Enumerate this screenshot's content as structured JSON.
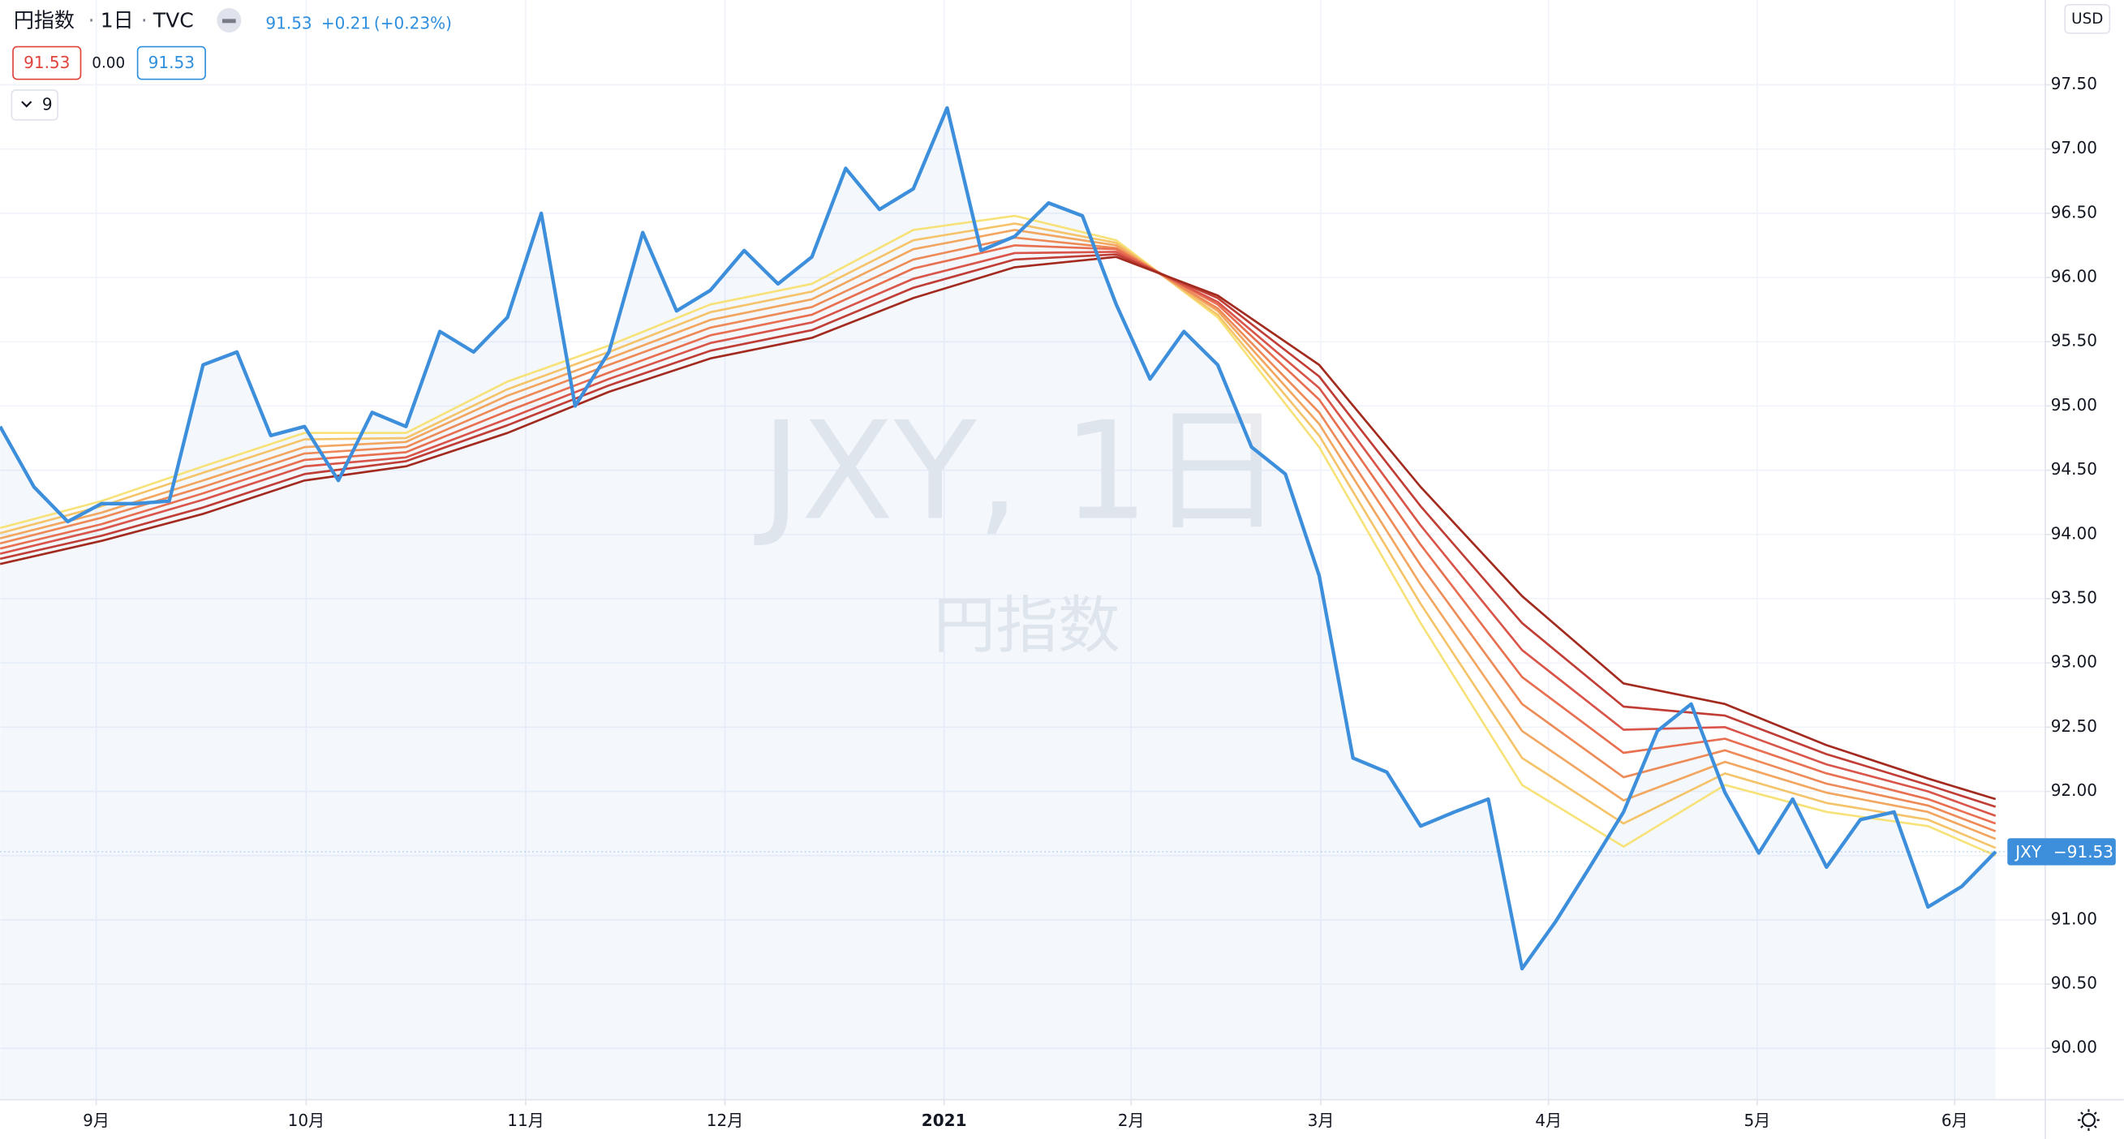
{
  "header": {
    "symbol_name": "円指数",
    "separator": "·",
    "interval": "1日",
    "source": "TVC",
    "last": "91.53",
    "change": "+0.21",
    "change_pct": "(+0.23%)",
    "box_low": "91.53",
    "box_mid": "0.00",
    "box_high": "91.53",
    "indicator_param": "9"
  },
  "watermark": {
    "main": "JXY, 1日",
    "sub": "円指数"
  },
  "currency": "USD",
  "price_label": {
    "symbol": "JXY",
    "separator": "−",
    "value": "91.53"
  },
  "chart_data": {
    "type": "line",
    "grid": true,
    "xlim": [
      0,
      60.47
    ],
    "ylim": [
      89.6,
      98.16
    ],
    "xticks": [
      {
        "value": 2.84,
        "label": "9月"
      },
      {
        "value": 9.05,
        "label": "10月"
      },
      {
        "value": 15.54,
        "label": "11月"
      },
      {
        "value": 21.43,
        "label": "12月"
      },
      {
        "value": 27.91,
        "label": "2021"
      },
      {
        "value": 33.44,
        "label": "2月"
      },
      {
        "value": 39.05,
        "label": "3月"
      },
      {
        "value": 45.78,
        "label": "4月"
      },
      {
        "value": 51.95,
        "label": "5月"
      },
      {
        "value": 57.79,
        "label": "6月"
      }
    ],
    "yticks": [
      {
        "value": 90,
        "label": "90.00"
      },
      {
        "value": 90.5,
        "label": "90.50"
      },
      {
        "value": 91,
        "label": "91.00"
      },
      {
        "value": 91.5,
        "label": "91.50"
      },
      {
        "value": 92,
        "label": "92.00"
      },
      {
        "value": 92.5,
        "label": "92.50"
      },
      {
        "value": 93,
        "label": "93.00"
      },
      {
        "value": 93.5,
        "label": "93.50"
      },
      {
        "value": 94,
        "label": "94.00"
      },
      {
        "value": 94.5,
        "label": "94.50"
      },
      {
        "value": 95,
        "label": "95.00"
      },
      {
        "value": 95.5,
        "label": "95.50"
      },
      {
        "value": 96,
        "label": "96.00"
      },
      {
        "value": 96.5,
        "label": "96.50"
      },
      {
        "value": 97,
        "label": "97.00"
      },
      {
        "value": 97.5,
        "label": "97.50"
      }
    ],
    "series": [
      {
        "color": "#3d8fdc",
        "area": true,
        "x": [
          0,
          1,
          2,
          3,
          4,
          5,
          6,
          7,
          8,
          9,
          10,
          11,
          12,
          13,
          14,
          15,
          16,
          17,
          18,
          19,
          20,
          21,
          22,
          23,
          24,
          25,
          26,
          27,
          28,
          29,
          30,
          31,
          32,
          33,
          34,
          35,
          36,
          37,
          38,
          39,
          40,
          41,
          42,
          43,
          44,
          45,
          46,
          47,
          48,
          49,
          50,
          51,
          52,
          53,
          54,
          55,
          56,
          57,
          58,
          59
        ],
        "values": [
          94.84,
          94.37,
          94.1,
          94.24,
          94.24,
          94.26,
          95.32,
          95.42,
          94.77,
          94.84,
          94.42,
          94.95,
          94.84,
          95.58,
          95.42,
          95.69,
          96.5,
          95.0,
          95.42,
          96.35,
          95.74,
          95.9,
          96.21,
          95.95,
          96.16,
          96.85,
          96.53,
          96.69,
          97.32,
          96.21,
          96.32,
          96.58,
          96.48,
          95.79,
          95.21,
          95.58,
          95.32,
          94.68,
          94.47,
          93.68,
          92.26,
          92.15,
          91.73,
          91.84,
          91.94,
          90.62,
          90.99,
          91.41,
          91.84,
          92.47,
          92.68,
          91.99,
          91.52,
          91.94,
          91.41,
          91.78,
          91.84,
          91.1,
          91.26,
          91.53
        ]
      },
      {
        "color": "#f7e27a",
        "x": [
          0,
          3,
          6,
          9,
          12,
          15,
          18,
          21,
          24,
          27,
          30,
          33,
          36,
          39,
          42,
          45,
          48,
          51,
          54,
          57,
          59
        ],
        "values": [
          94.05,
          94.26,
          94.53,
          94.79,
          94.79,
          95.19,
          95.47,
          95.79,
          95.95,
          96.37,
          96.48,
          96.29,
          95.69,
          94.68,
          93.31,
          92.05,
          91.57,
          92.05,
          91.84,
          91.73,
          91.5
        ]
      },
      {
        "color": "#f5c46a",
        "x": [
          0,
          3,
          6,
          9,
          12,
          15,
          18,
          21,
          24,
          27,
          30,
          33,
          36,
          39,
          42,
          45,
          48,
          51,
          54,
          57,
          59
        ],
        "values": [
          94.01,
          94.22,
          94.48,
          94.74,
          94.75,
          95.13,
          95.42,
          95.73,
          95.89,
          96.29,
          96.42,
          96.27,
          95.71,
          94.77,
          93.46,
          92.26,
          91.75,
          92.14,
          91.91,
          91.78,
          91.56
        ]
      },
      {
        "color": "#f2a65f",
        "x": [
          0,
          3,
          6,
          9,
          12,
          15,
          18,
          21,
          24,
          27,
          30,
          33,
          36,
          39,
          42,
          45,
          48,
          51,
          54,
          57,
          59
        ],
        "values": [
          93.97,
          94.17,
          94.42,
          94.68,
          94.72,
          95.08,
          95.37,
          95.67,
          95.83,
          96.22,
          96.37,
          96.25,
          95.74,
          94.86,
          93.61,
          92.47,
          91.93,
          92.23,
          91.99,
          91.84,
          91.63
        ]
      },
      {
        "color": "#ee8a57",
        "x": [
          0,
          3,
          6,
          9,
          12,
          15,
          18,
          21,
          24,
          27,
          30,
          33,
          36,
          39,
          42,
          45,
          48,
          51,
          54,
          57,
          59
        ],
        "values": [
          93.93,
          94.13,
          94.37,
          94.63,
          94.68,
          95.02,
          95.32,
          95.61,
          95.77,
          96.14,
          96.31,
          96.23,
          95.76,
          94.95,
          93.76,
          92.68,
          92.11,
          92.32,
          92.06,
          91.89,
          91.69
        ]
      },
      {
        "color": "#e86f50",
        "x": [
          0,
          3,
          6,
          9,
          12,
          15,
          18,
          21,
          24,
          27,
          30,
          33,
          36,
          39,
          42,
          45,
          48,
          51,
          54,
          57,
          59
        ],
        "values": [
          93.89,
          94.08,
          94.32,
          94.58,
          94.64,
          94.96,
          95.26,
          95.55,
          95.71,
          96.07,
          96.25,
          96.22,
          95.79,
          95.05,
          93.92,
          92.89,
          92.3,
          92.41,
          92.14,
          91.94,
          91.75
        ]
      },
      {
        "color": "#d9554a",
        "x": [
          0,
          3,
          6,
          9,
          12,
          15,
          18,
          21,
          24,
          27,
          30,
          33,
          36,
          39,
          42,
          45,
          48,
          51,
          54,
          57,
          59
        ],
        "values": [
          93.85,
          94.04,
          94.27,
          94.53,
          94.6,
          94.9,
          95.21,
          95.49,
          95.65,
          95.99,
          96.19,
          96.2,
          95.81,
          95.14,
          94.07,
          93.1,
          92.48,
          92.5,
          92.21,
          92.0,
          91.81
        ]
      },
      {
        "color": "#c03e36",
        "x": [
          0,
          3,
          6,
          9,
          12,
          15,
          18,
          21,
          24,
          27,
          30,
          33,
          36,
          39,
          42,
          45,
          48,
          51,
          54,
          57,
          59
        ],
        "values": [
          93.81,
          93.99,
          94.21,
          94.47,
          94.57,
          94.85,
          95.16,
          95.43,
          95.59,
          95.92,
          96.14,
          96.18,
          95.84,
          95.23,
          94.22,
          93.31,
          92.66,
          92.59,
          92.29,
          92.05,
          91.88
        ]
      },
      {
        "color": "#a32a1e",
        "x": [
          0,
          3,
          6,
          9,
          12,
          15,
          18,
          21,
          24,
          27,
          30,
          33,
          36,
          39,
          42,
          45,
          48,
          51,
          54,
          57,
          59
        ],
        "values": [
          93.77,
          93.95,
          94.16,
          94.42,
          94.53,
          94.79,
          95.11,
          95.37,
          95.53,
          95.84,
          96.08,
          96.16,
          95.86,
          95.32,
          94.37,
          93.52,
          92.84,
          92.68,
          92.36,
          92.1,
          91.94
        ]
      }
    ]
  }
}
